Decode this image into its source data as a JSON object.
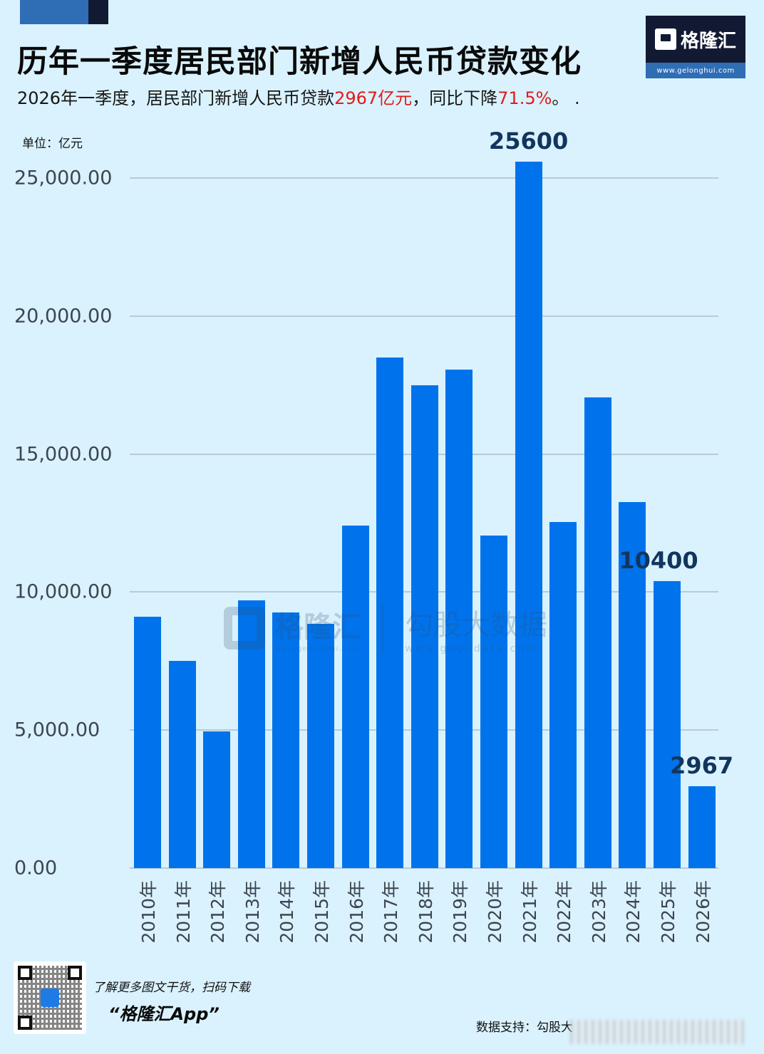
{
  "header": {
    "title": "历年一季度居民部门新增人民币贷款变化",
    "subtitle_parts": [
      {
        "text": "2026年一季度，居民部门新增人民币贷款",
        "color": "#161616"
      },
      {
        "text": "2967亿元",
        "color": "#e21b1b"
      },
      {
        "text": "，同比下降",
        "color": "#161616"
      },
      {
        "text": "71.5%",
        "color": "#e21b1b"
      },
      {
        "text": "。 .",
        "color": "#161616"
      }
    ]
  },
  "logo": {
    "brand": "格隆汇",
    "url": "www.gelonghui.com"
  },
  "unit_label": "单位：亿元",
  "watermark": {
    "left_text": "格隆汇",
    "left_url": "www.gelonghui.com",
    "right_text": "勾股大数据",
    "right_url": "www.gogudata.com"
  },
  "chart_data": {
    "type": "bar",
    "title": "历年一季度居民部门新增人民币贷款变化",
    "subtitle": "2026年一季度，居民部门新增人民币贷款2967亿元，同比下降71.5%。",
    "xlabel": "",
    "ylabel": "单位：亿元",
    "ylim": [
      0,
      25000
    ],
    "yticks": [
      "0.00",
      "5,000.00",
      "10,000.00",
      "15,000.00",
      "20,000.00",
      "25,000.00"
    ],
    "grid": true,
    "legend": "none",
    "color": "#0073ec",
    "categories": [
      "2010年",
      "2011年",
      "2012年",
      "2013年",
      "2014年",
      "2015年",
      "2016年",
      "2017年",
      "2018年",
      "2019年",
      "2020年",
      "2021年",
      "2022年",
      "2023年",
      "2024年",
      "2025年",
      "2026年"
    ],
    "values": [
      9100,
      7500,
      4950,
      9700,
      9250,
      8850,
      12400,
      18500,
      17500,
      18050,
      12050,
      25600,
      12550,
      17050,
      13250,
      10400,
      2967
    ],
    "annotations": [
      {
        "category": "2021年",
        "label": "25600"
      },
      {
        "category": "2025年",
        "label": "10400"
      },
      {
        "category": "2026年",
        "label": "2967"
      }
    ]
  },
  "footer": {
    "promo_line1": "了解更多图文干货，扫码下载",
    "promo_line2": "“格隆汇App”",
    "source": "数据支持：勾股大"
  }
}
